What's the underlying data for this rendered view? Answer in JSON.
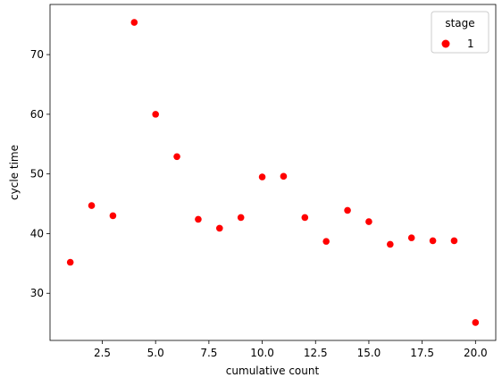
{
  "chart_data": {
    "type": "scatter",
    "x_label": "cumulative count",
    "y_label": "cycle time",
    "x": [
      1,
      2,
      3,
      4,
      5,
      6,
      7,
      8,
      9,
      10,
      11,
      12,
      13,
      14,
      15,
      16,
      17,
      18,
      19,
      20
    ],
    "series": [
      {
        "name": "1",
        "color": "#ff0000",
        "values": [
          35.2,
          44.7,
          43.0,
          75.4,
          60.0,
          52.9,
          42.4,
          40.9,
          42.7,
          49.5,
          49.6,
          42.7,
          38.7,
          43.9,
          42.0,
          38.2,
          39.3,
          38.8,
          38.8,
          25.1
        ]
      }
    ],
    "legend_title": "stage",
    "legend": "upper right",
    "xlim": [
      0.05,
      20.95
    ],
    "ylim": [
      22.1,
      78.4
    ],
    "xticks": [
      2.5,
      {
        "value": 5,
        "label": "5.0"
      },
      7.5,
      {
        "value": 10,
        "label": "10.0"
      },
      12.5,
      {
        "value": 15,
        "label": "15.0"
      },
      17.5,
      {
        "value": 20,
        "label": "20.0"
      }
    ],
    "yticks": [
      30,
      40,
      50,
      60,
      70
    ]
  }
}
